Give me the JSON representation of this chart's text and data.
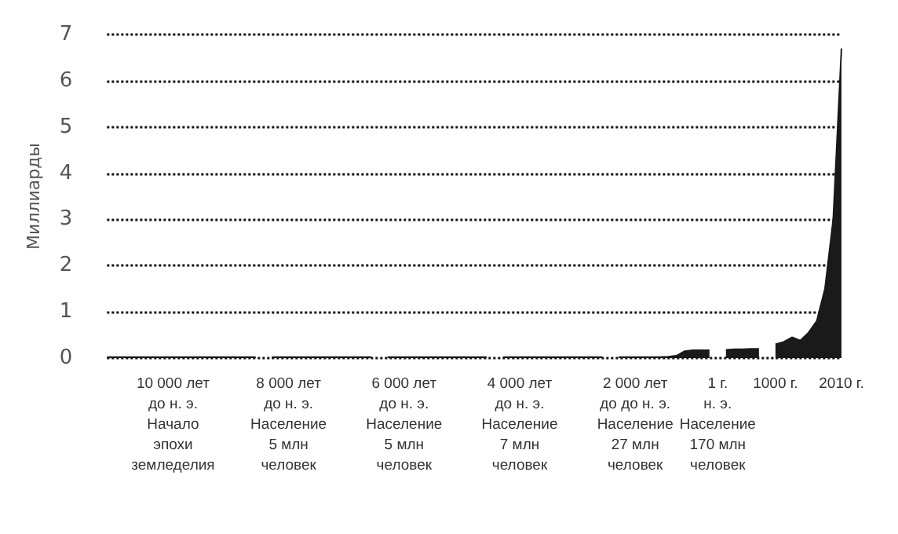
{
  "chart_data": {
    "type": "area",
    "ylabel": "Миллиарды",
    "categories": [
      null,
      null,
      null,
      null,
      null,
      null,
      null,
      null,
      "10 000 лет\nдо н. э.\nНачало\nэпохи\nземледелия",
      null,
      null,
      null,
      null,
      null,
      null,
      null,
      null,
      null,
      null,
      null,
      null,
      null,
      "8 000 лет\nдо н. э.\nНаселение\n5 млн\nчеловек",
      null,
      null,
      null,
      null,
      null,
      null,
      null,
      null,
      null,
      null,
      null,
      null,
      null,
      "6 000 лет\nдо н. э.\nНаселение\n5 млн\nчеловек",
      null,
      null,
      null,
      null,
      null,
      null,
      null,
      null,
      null,
      null,
      null,
      null,
      null,
      "4 000 лет\nдо н. э.\nНаселение\n7 млн\nчеловек",
      null,
      null,
      null,
      null,
      null,
      null,
      null,
      null,
      null,
      null,
      null,
      null,
      null,
      "2 000 лет\nдо до н. э.\nНаселение\n27 млн\nчеловек",
      null,
      null,
      null,
      null,
      null,
      null,
      null,
      null,
      null,
      "1 г.\nн. э.\nНаселение\n170 млн\nчеловек",
      null,
      null,
      null,
      null,
      null,
      null,
      "1000 г.",
      null,
      null,
      null,
      null,
      null,
      null,
      null,
      "2010 г."
    ],
    "series": [
      {
        "color": "#1a1a1a",
        "values": [
          0.02,
          0.02,
          0.02,
          0.02,
          0.02,
          0.02,
          0.02,
          0.02,
          0.02,
          0.02,
          0.02,
          0.02,
          0.02,
          0.02,
          0.02,
          0.02,
          0.02,
          0.02,
          0.02,
          null,
          0.02,
          0.02,
          0.02,
          0.02,
          0.02,
          0.02,
          0.02,
          0.02,
          0.02,
          0.02,
          0.02,
          0.02,
          0.02,
          null,
          0.02,
          0.02,
          0.02,
          0.02,
          0.02,
          0.02,
          0.02,
          0.02,
          0.02,
          0.02,
          0.02,
          0.02,
          0.02,
          null,
          0.02,
          0.02,
          0.02,
          0.02,
          0.02,
          0.02,
          0.02,
          0.02,
          0.02,
          0.02,
          0.02,
          0.02,
          0.02,
          null,
          0.02,
          0.02,
          0.02,
          0.02,
          0.02,
          0.02,
          0.03,
          0.05,
          0.15,
          0.17,
          0.17,
          0.17,
          null,
          0.18,
          0.19,
          0.19,
          0.2,
          0.2,
          null,
          0.3,
          0.35,
          0.45,
          0.38,
          0.55,
          0.8,
          1.5,
          3,
          6.7
        ]
      }
    ],
    "ylim": [
      0,
      7
    ],
    "yticks": [
      0,
      1,
      2,
      3,
      4,
      5,
      6,
      7
    ],
    "grid": "y",
    "line_style": "dotted",
    "marker": "none"
  }
}
